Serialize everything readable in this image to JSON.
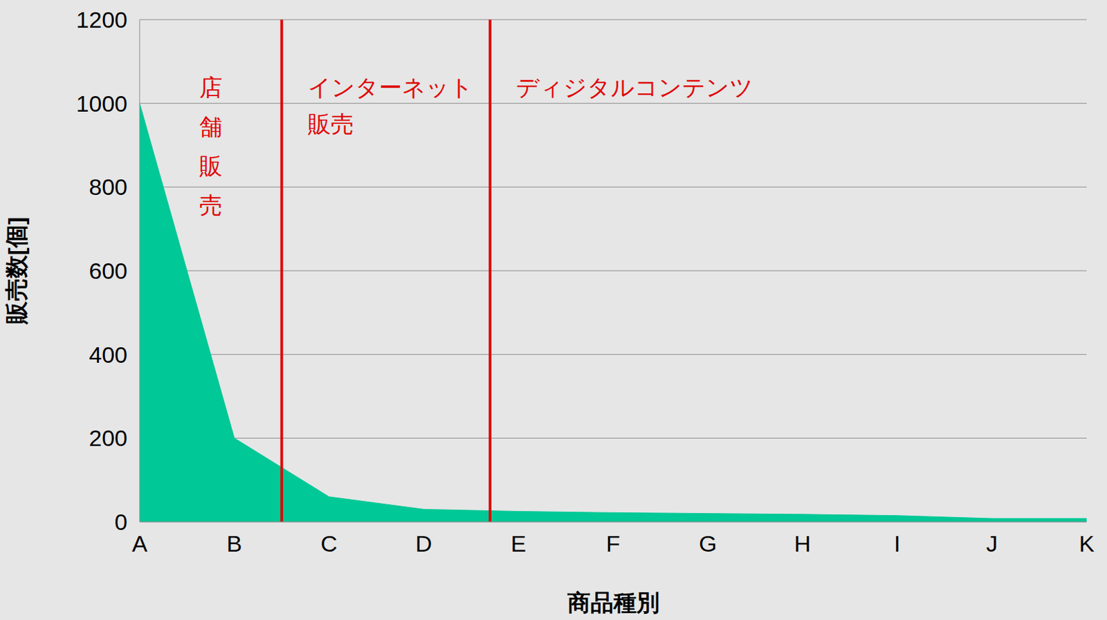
{
  "chart_data": {
    "type": "area",
    "categories": [
      "A",
      "B",
      "C",
      "D",
      "E",
      "F",
      "G",
      "H",
      "I",
      "J",
      "K"
    ],
    "values": [
      1000,
      200,
      60,
      30,
      25,
      22,
      20,
      18,
      15,
      8,
      8
    ],
    "color": "#00c896",
    "ylim": [
      0,
      1200
    ],
    "yticks": [
      0,
      200,
      400,
      600,
      800,
      1000,
      1200
    ],
    "grid": true,
    "x_label": "商品種別",
    "y_label": "販売数[個]",
    "regions": [
      {
        "text": "店舗販売",
        "start": 0,
        "end": 1.5,
        "color": "#e00000"
      },
      {
        "text": "インターネット販売",
        "start": 1.5,
        "end": 3.7,
        "color": "#e00000"
      },
      {
        "text": "ディジタルコンテンツ",
        "start": 3.7,
        "end": 10,
        "color": "#e00000"
      }
    ]
  }
}
